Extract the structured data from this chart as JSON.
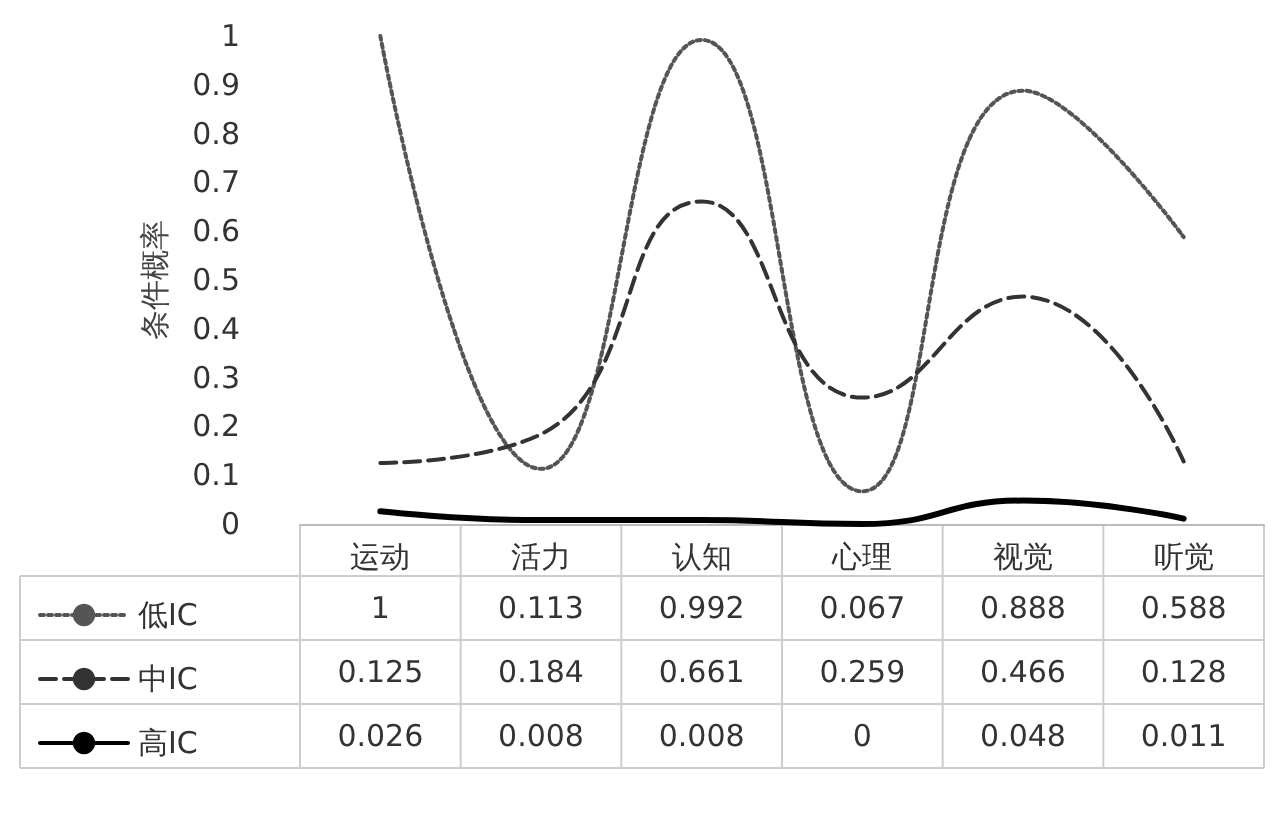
{
  "chart_data": {
    "type": "line",
    "ylabel": "条件概率",
    "categories": [
      "运动",
      "活力",
      "认知",
      "心理",
      "视觉",
      "听觉"
    ],
    "series": [
      {
        "name": "低IC",
        "color": "#555555",
        "line_style": "dotted",
        "values": [
          1,
          0.113,
          0.992,
          0.067,
          0.888,
          0.588
        ]
      },
      {
        "name": "中IC",
        "color": "#333333",
        "line_style": "dashed",
        "values": [
          0.125,
          0.184,
          0.661,
          0.259,
          0.466,
          0.128
        ]
      },
      {
        "name": "高IC",
        "color": "#000000",
        "line_style": "solid",
        "values": [
          0.026,
          0.008,
          0.008,
          0,
          0.048,
          0.011
        ]
      }
    ],
    "ylim": [
      0,
      1
    ],
    "yticks": [
      0,
      0.1,
      0.2,
      0.3,
      0.4,
      0.5,
      0.6,
      0.7,
      0.8,
      0.9,
      1
    ],
    "grid": false,
    "legend": "bottom",
    "marker": "none",
    "data_labels": true
  }
}
